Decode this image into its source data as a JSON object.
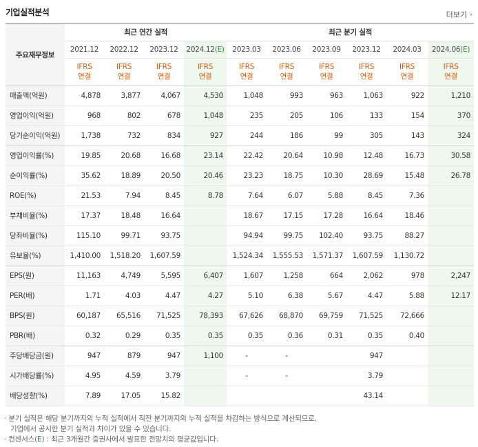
{
  "section_title": "기업실적분석",
  "more_label": "더보기",
  "header": {
    "corner_label": "주요재무정보",
    "annual_group": "최근 연간 실적",
    "quarter_group": "최근 분기 실적",
    "periods": [
      "2021.12",
      "2022.12",
      "2023.12",
      "2024.12(E)",
      "2023.03",
      "2023.06",
      "2023.09",
      "2023.12",
      "2024.03",
      "2024.06(E)"
    ],
    "ifrs_top": "IFRS",
    "ifrs_bottom": "연결"
  },
  "rows": [
    {
      "label": "매출액(억원)",
      "values": [
        "4,878",
        "3,877",
        "4,067",
        "4,530",
        "1,048",
        "993",
        "963",
        "1,063",
        "922",
        "1,210"
      ]
    },
    {
      "label": "영업이익(억원)",
      "values": [
        "968",
        "802",
        "678",
        "1,048",
        "235",
        "205",
        "106",
        "133",
        "154",
        "370"
      ]
    },
    {
      "label": "당기순이익(억원)",
      "values": [
        "1,738",
        "732",
        "834",
        "927",
        "244",
        "186",
        "99",
        "305",
        "143",
        "324"
      ]
    },
    {
      "label": "영업이익률(%)",
      "values": [
        "19.85",
        "20.68",
        "16.68",
        "23.14",
        "22.42",
        "20.64",
        "10.98",
        "12.48",
        "16.73",
        "30.58"
      ]
    },
    {
      "label": "순이익률(%)",
      "values": [
        "35.62",
        "18.89",
        "20.50",
        "20.46",
        "23.23",
        "18.75",
        "10.30",
        "28.69",
        "15.48",
        "26.78"
      ]
    },
    {
      "label": "ROE(%)",
      "values": [
        "21.53",
        "7.94",
        "8.45",
        "8.78",
        "7.64",
        "6.07",
        "5.88",
        "8.45",
        "7.36",
        ""
      ]
    },
    {
      "label": "부채비율(%)",
      "values": [
        "17.37",
        "18.48",
        "16.64",
        "",
        "18.67",
        "17.15",
        "17.28",
        "16.64",
        "18.46",
        ""
      ]
    },
    {
      "label": "당좌비율(%)",
      "values": [
        "115.10",
        "99.71",
        "93.75",
        "",
        "94.94",
        "99.75",
        "102.40",
        "93.75",
        "88.27",
        ""
      ]
    },
    {
      "label": "유보율(%)",
      "values": [
        "1,410.00",
        "1,518.20",
        "1,607.59",
        "",
        "1,524.34",
        "1,555.53",
        "1,571.37",
        "1,607.59",
        "1,130.72",
        ""
      ]
    },
    {
      "label": "EPS(원)",
      "values": [
        "11,163",
        "4,749",
        "5,595",
        "6,407",
        "1,607",
        "1,258",
        "664",
        "2,062",
        "978",
        "2,247"
      ]
    },
    {
      "label": "PER(배)",
      "values": [
        "1.71",
        "4.03",
        "4.47",
        "4.27",
        "5.10",
        "6.38",
        "5.67",
        "4.47",
        "5.88",
        "12.17"
      ]
    },
    {
      "label": "BPS(원)",
      "values": [
        "60,187",
        "65,516",
        "71,525",
        "78,393",
        "67,626",
        "68,870",
        "69,759",
        "71,525",
        "72,666",
        ""
      ]
    },
    {
      "label": "PBR(배)",
      "values": [
        "0.32",
        "0.29",
        "0.35",
        "0.35",
        "0.35",
        "0.36",
        "0.31",
        "0.35",
        "0.40",
        ""
      ]
    },
    {
      "label": "주당배당금(원)",
      "values": [
        "947",
        "879",
        "947",
        "1,100",
        "-",
        "-",
        "",
        "947",
        "",
        ""
      ]
    },
    {
      "label": "시가배당률(%)",
      "values": [
        "4.95",
        "4.59",
        "3.79",
        "",
        "-",
        "-",
        "",
        "3.79",
        "",
        ""
      ]
    },
    {
      "label": "배당성향(%)",
      "values": [
        "7.89",
        "17.05",
        "15.82",
        "",
        "",
        "",
        "",
        "43.14",
        "",
        ""
      ]
    }
  ],
  "notes": {
    "line1": "· 분기 실적은 해당 분기까지의 누적 실적에서 직전 분기까지의 누적 실적을 차감하는 방식으로 계산되므로,",
    "line2": "기업에서 공시한 분기 실적과 차이가 있을 수 있습니다.",
    "line3_prefix": "· 컨센서스(",
    "line3_e": "E",
    "line3_suffix": ") : 최근 3개월간 증권사에서 발표한 전망치의 평균값입니다."
  },
  "colors": {
    "ifrs_orange": "#e05a0a",
    "estimate_green": "#2c8c36",
    "estimate_bg": "#eef8ef",
    "label_bg": "#f5f5f5"
  }
}
